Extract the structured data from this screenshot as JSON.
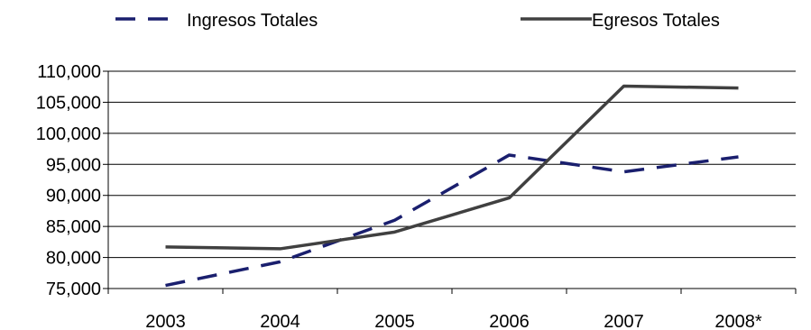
{
  "chart_data": {
    "type": "line",
    "title": "",
    "xlabel": "",
    "ylabel": "",
    "categories": [
      "2003",
      "2004",
      "2005",
      "2006",
      "2007",
      "2008*"
    ],
    "ylim": [
      75000,
      110000
    ],
    "yticks": [
      75000,
      80000,
      85000,
      90000,
      95000,
      100000,
      105000,
      110000
    ],
    "ytick_labels": [
      "75,000",
      "80,000",
      "85,000",
      "90,000",
      "95,000",
      "100,000",
      "105,000",
      "110,000"
    ],
    "grid": "horizontal",
    "legend_position": "top",
    "series": [
      {
        "name": "Ingresos Totales",
        "style": "dashed",
        "color": "#1a1f6e",
        "values": [
          75500,
          79300,
          86000,
          96500,
          93800,
          96200
        ]
      },
      {
        "name": "Egresos Totales",
        "style": "solid",
        "color": "#404040",
        "values": [
          81700,
          81400,
          84100,
          89600,
          107600,
          107300
        ]
      }
    ]
  }
}
